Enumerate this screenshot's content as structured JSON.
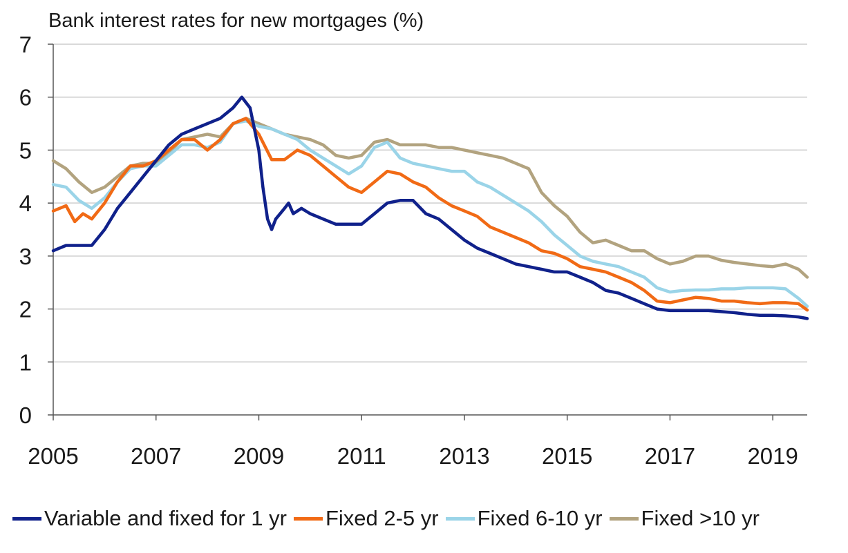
{
  "chart_data": {
    "type": "line",
    "title": "Bank interest rates for new mortgages (%)",
    "xlabel": "",
    "ylabel": "",
    "xlim": [
      2005.0,
      2019.67
    ],
    "ylim": [
      0,
      7
    ],
    "y_ticks": [
      "0",
      "1",
      "2",
      "3",
      "4",
      "5",
      "6",
      "7"
    ],
    "x_ticks": [
      "2005",
      "2007",
      "2009",
      "2011",
      "2013",
      "2015",
      "2017",
      "2019"
    ],
    "grid": "horizontal",
    "legend_position": "bottom",
    "series": [
      {
        "name": "Variable and fixed for 1 yr",
        "color": "#10218b",
        "x": [
          2005.0,
          2005.25,
          2005.5,
          2005.75,
          2006.0,
          2006.25,
          2006.5,
          2006.75,
          2007.0,
          2007.25,
          2007.5,
          2007.75,
          2008.0,
          2008.25,
          2008.5,
          2008.67,
          2008.83,
          2009.0,
          2009.08,
          2009.17,
          2009.25,
          2009.33,
          2009.5,
          2009.58,
          2009.67,
          2009.83,
          2010.0,
          2010.25,
          2010.5,
          2010.75,
          2011.0,
          2011.25,
          2011.5,
          2011.75,
          2012.0,
          2012.25,
          2012.5,
          2012.75,
          2013.0,
          2013.25,
          2013.5,
          2013.75,
          2014.0,
          2014.25,
          2014.5,
          2014.75,
          2015.0,
          2015.25,
          2015.5,
          2015.75,
          2016.0,
          2016.25,
          2016.5,
          2016.75,
          2017.0,
          2017.25,
          2017.5,
          2017.75,
          2018.0,
          2018.25,
          2018.5,
          2018.75,
          2019.0,
          2019.25,
          2019.5,
          2019.67
        ],
        "values": [
          3.1,
          3.2,
          3.2,
          3.2,
          3.5,
          3.9,
          4.2,
          4.5,
          4.8,
          5.1,
          5.3,
          5.4,
          5.5,
          5.6,
          5.8,
          6.0,
          5.8,
          5.0,
          4.3,
          3.7,
          3.5,
          3.7,
          3.9,
          4.0,
          3.8,
          3.9,
          3.8,
          3.7,
          3.6,
          3.6,
          3.6,
          3.8,
          4.0,
          4.05,
          4.05,
          3.8,
          3.7,
          3.5,
          3.3,
          3.15,
          3.05,
          2.95,
          2.85,
          2.8,
          2.75,
          2.7,
          2.7,
          2.6,
          2.5,
          2.35,
          2.3,
          2.2,
          2.1,
          2.0,
          1.97,
          1.97,
          1.97,
          1.97,
          1.95,
          1.93,
          1.9,
          1.88,
          1.88,
          1.87,
          1.85,
          1.82
        ]
      },
      {
        "name": "Fixed 2-5 yr",
        "color": "#f16a15",
        "x": [
          2005.0,
          2005.25,
          2005.42,
          2005.58,
          2005.75,
          2006.0,
          2006.25,
          2006.5,
          2006.75,
          2007.0,
          2007.25,
          2007.5,
          2007.75,
          2008.0,
          2008.25,
          2008.5,
          2008.75,
          2009.0,
          2009.25,
          2009.5,
          2009.75,
          2010.0,
          2010.25,
          2010.5,
          2010.75,
          2011.0,
          2011.25,
          2011.5,
          2011.75,
          2012.0,
          2012.25,
          2012.5,
          2012.75,
          2013.0,
          2013.25,
          2013.5,
          2013.75,
          2014.0,
          2014.25,
          2014.5,
          2014.75,
          2015.0,
          2015.25,
          2015.5,
          2015.75,
          2016.0,
          2016.25,
          2016.5,
          2016.75,
          2017.0,
          2017.25,
          2017.5,
          2017.75,
          2018.0,
          2018.25,
          2018.5,
          2018.75,
          2019.0,
          2019.25,
          2019.5,
          2019.67
        ],
        "values": [
          3.85,
          3.95,
          3.65,
          3.8,
          3.7,
          4.0,
          4.4,
          4.7,
          4.7,
          4.8,
          5.0,
          5.2,
          5.2,
          5.0,
          5.2,
          5.5,
          5.6,
          5.3,
          4.82,
          4.82,
          5.0,
          4.9,
          4.7,
          4.5,
          4.3,
          4.2,
          4.4,
          4.6,
          4.55,
          4.4,
          4.3,
          4.1,
          3.95,
          3.85,
          3.75,
          3.55,
          3.45,
          3.35,
          3.25,
          3.1,
          3.05,
          2.95,
          2.8,
          2.75,
          2.7,
          2.6,
          2.5,
          2.35,
          2.15,
          2.12,
          2.17,
          2.22,
          2.2,
          2.15,
          2.15,
          2.12,
          2.1,
          2.12,
          2.12,
          2.1,
          1.98
        ]
      },
      {
        "name": "Fixed 6-10 yr",
        "color": "#9ad4e8",
        "x": [
          2005.0,
          2005.25,
          2005.5,
          2005.75,
          2006.0,
          2006.25,
          2006.5,
          2006.75,
          2007.0,
          2007.25,
          2007.5,
          2007.75,
          2008.0,
          2008.25,
          2008.5,
          2008.75,
          2009.0,
          2009.25,
          2009.5,
          2009.75,
          2010.0,
          2010.25,
          2010.5,
          2010.75,
          2011.0,
          2011.25,
          2011.5,
          2011.75,
          2012.0,
          2012.25,
          2012.5,
          2012.75,
          2013.0,
          2013.25,
          2013.5,
          2013.75,
          2014.0,
          2014.25,
          2014.5,
          2014.75,
          2015.0,
          2015.25,
          2015.5,
          2015.75,
          2016.0,
          2016.25,
          2016.5,
          2016.75,
          2017.0,
          2017.25,
          2017.5,
          2017.75,
          2018.0,
          2018.25,
          2018.5,
          2018.75,
          2019.0,
          2019.25,
          2019.5,
          2019.67
        ],
        "values": [
          4.35,
          4.3,
          4.05,
          3.9,
          4.1,
          4.4,
          4.65,
          4.7,
          4.7,
          4.9,
          5.1,
          5.1,
          5.05,
          5.15,
          5.5,
          5.55,
          5.45,
          5.4,
          5.3,
          5.2,
          5.0,
          4.85,
          4.7,
          4.55,
          4.7,
          5.05,
          5.15,
          4.85,
          4.75,
          4.7,
          4.65,
          4.6,
          4.6,
          4.4,
          4.3,
          4.15,
          4.0,
          3.85,
          3.65,
          3.4,
          3.2,
          3.0,
          2.9,
          2.85,
          2.8,
          2.7,
          2.6,
          2.4,
          2.32,
          2.35,
          2.36,
          2.36,
          2.38,
          2.38,
          2.4,
          2.4,
          2.4,
          2.38,
          2.2,
          2.05
        ]
      },
      {
        "name": "Fixed >10 yr",
        "color": "#b2a37f",
        "x": [
          2005.0,
          2005.25,
          2005.5,
          2005.75,
          2006.0,
          2006.25,
          2006.5,
          2006.75,
          2007.0,
          2007.25,
          2007.5,
          2007.75,
          2008.0,
          2008.25,
          2008.5,
          2008.75,
          2009.0,
          2009.25,
          2009.5,
          2009.75,
          2010.0,
          2010.25,
          2010.5,
          2010.75,
          2011.0,
          2011.25,
          2011.5,
          2011.75,
          2012.0,
          2012.25,
          2012.5,
          2012.75,
          2013.0,
          2013.25,
          2013.5,
          2013.75,
          2014.0,
          2014.25,
          2014.5,
          2014.75,
          2015.0,
          2015.25,
          2015.5,
          2015.75,
          2016.0,
          2016.25,
          2016.5,
          2016.75,
          2017.0,
          2017.25,
          2017.5,
          2017.75,
          2018.0,
          2018.25,
          2018.5,
          2018.75,
          2019.0,
          2019.25,
          2019.5,
          2019.67
        ],
        "values": [
          4.8,
          4.65,
          4.4,
          4.2,
          4.3,
          4.5,
          4.7,
          4.75,
          4.75,
          4.95,
          5.2,
          5.25,
          5.3,
          5.25,
          5.5,
          5.6,
          5.5,
          5.4,
          5.3,
          5.25,
          5.2,
          5.1,
          4.9,
          4.85,
          4.9,
          5.15,
          5.2,
          5.1,
          5.1,
          5.1,
          5.05,
          5.05,
          5.0,
          4.95,
          4.9,
          4.85,
          4.75,
          4.65,
          4.2,
          3.95,
          3.75,
          3.45,
          3.25,
          3.3,
          3.2,
          3.1,
          3.1,
          2.95,
          2.85,
          2.9,
          3.0,
          3.0,
          2.92,
          2.88,
          2.85,
          2.82,
          2.8,
          2.85,
          2.75,
          2.6
        ]
      }
    ]
  }
}
